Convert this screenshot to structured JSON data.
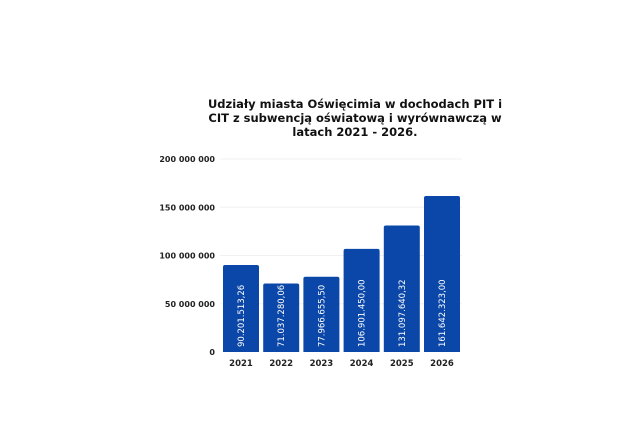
{
  "chart_data": {
    "type": "bar",
    "title": "Udziały miasta Oświęcimia w dochodach PIT i CIT z subwencją oświatową i wyrównawczą w latach 2021 - 2026.",
    "categories": [
      "2021",
      "2022",
      "2023",
      "2024",
      "2025",
      "2026"
    ],
    "values": [
      90201513.26,
      71037280.06,
      77966655.5,
      106901450.0,
      131097640.32,
      161642323.0
    ],
    "data_labels": [
      "90.201.513,26",
      "71.037.280,06",
      "77.966.655,50",
      "106.901.450,00",
      "131.097.640,32",
      "161.642.323,00"
    ],
    "yticks": [
      0,
      50000000,
      100000000,
      150000000,
      200000000
    ],
    "ytick_labels": [
      "0",
      "50 000 000",
      "100 000 000",
      "150 000 000",
      "200 000 000"
    ],
    "ylim": [
      0,
      200000000
    ],
    "grid": true,
    "bar_color": "#0b47a8",
    "xlabel": "",
    "ylabel": ""
  }
}
